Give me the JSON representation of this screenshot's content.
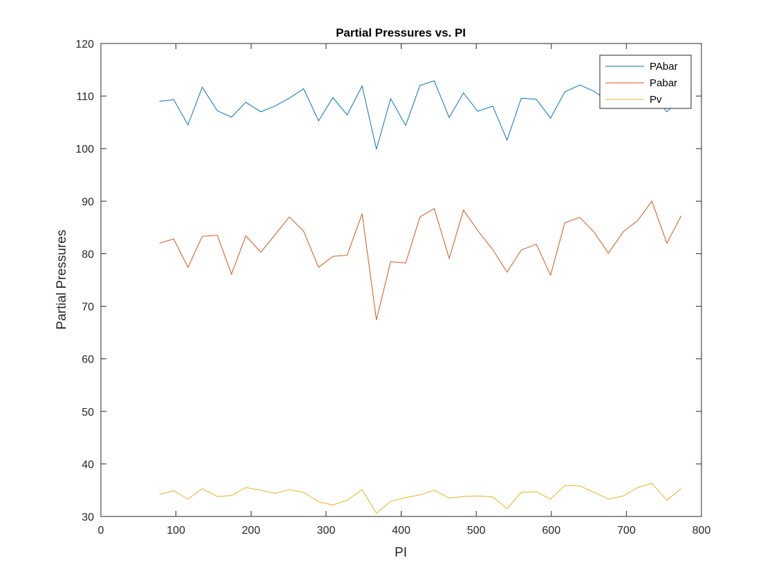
{
  "chart_data": {
    "type": "line",
    "title": "Partial Pressures vs. PI",
    "xlabel": "PI",
    "ylabel": "Partial Pressures",
    "xlim": [
      0,
      800
    ],
    "ylim": [
      30,
      120
    ],
    "xticks": [
      0,
      100,
      200,
      300,
      400,
      500,
      600,
      700,
      800
    ],
    "yticks": [
      30,
      40,
      50,
      60,
      70,
      80,
      90,
      100,
      110,
      120
    ],
    "grid": false,
    "legend_position": "top-right",
    "x": [
      78,
      97,
      116,
      135,
      155,
      174,
      193,
      213,
      232,
      251,
      270,
      290,
      309,
      328,
      348,
      367,
      386,
      406,
      425,
      444,
      464,
      483,
      502,
      522,
      541,
      560,
      580,
      599,
      618,
      638,
      657,
      676,
      696,
      715,
      734,
      754,
      773
    ],
    "series": [
      {
        "name": "PAbar",
        "color": "#0072BD",
        "values": [
          109.0,
          109.3,
          104.5,
          111.7,
          107.2,
          106.0,
          108.8,
          107.0,
          108.1,
          109.6,
          111.4,
          105.3,
          109.7,
          106.4,
          111.9,
          99.9,
          109.5,
          104.4,
          112.0,
          112.9,
          105.9,
          110.6,
          107.1,
          108.1,
          101.6,
          109.6,
          109.4,
          105.8,
          110.8,
          112.1,
          110.9,
          109.0,
          111.5,
          111.8,
          110.5,
          107.0,
          109.6
        ]
      },
      {
        "name": "Pabar",
        "color": "#D95319",
        "values": [
          82.0,
          82.8,
          77.4,
          83.3,
          83.5,
          76.1,
          83.4,
          80.3,
          83.6,
          87.0,
          84.3,
          77.4,
          79.5,
          79.7,
          87.6,
          67.4,
          78.5,
          78.2,
          87.0,
          88.6,
          79.1,
          88.3,
          84.4,
          80.8,
          76.5,
          80.7,
          81.8,
          75.9,
          85.9,
          86.9,
          84.1,
          80.1,
          84.2,
          86.3,
          90.0,
          82.0,
          87.2
        ]
      },
      {
        "name": "Pv",
        "color": "#EDB120",
        "values": [
          34.2,
          34.9,
          33.3,
          35.3,
          33.8,
          34.0,
          35.5,
          35.0,
          34.4,
          35.1,
          34.6,
          32.8,
          32.2,
          33.1,
          35.1,
          30.6,
          32.9,
          33.6,
          34.1,
          35.0,
          33.5,
          33.8,
          33.9,
          33.7,
          31.5,
          34.6,
          34.7,
          33.3,
          35.9,
          35.8,
          34.6,
          33.3,
          33.9,
          35.5,
          36.3,
          33.1,
          35.3
        ]
      }
    ]
  }
}
